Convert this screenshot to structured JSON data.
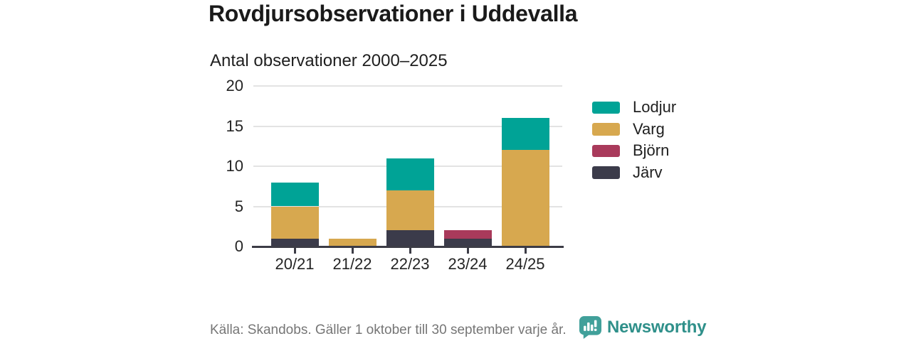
{
  "chart_data": {
    "type": "bar",
    "stacked": true,
    "title": "Rovdjursobservationer i Uddevalla",
    "subtitle": "Antal observationer 2000–2025",
    "categories": [
      "20/21",
      "21/22",
      "22/23",
      "23/24",
      "24/25"
    ],
    "series": [
      {
        "name": "Lodjur",
        "color": "#00A396",
        "values": [
          3,
          0,
          4,
          0,
          4
        ]
      },
      {
        "name": "Varg",
        "color": "#D7A84F",
        "values": [
          4,
          1,
          5,
          0,
          12
        ]
      },
      {
        "name": "Björn",
        "color": "#A93A5B",
        "values": [
          0,
          0,
          0,
          1,
          0
        ]
      },
      {
        "name": "Järv",
        "color": "#3B3B4A",
        "values": [
          1,
          0,
          2,
          1,
          0
        ]
      }
    ],
    "stack_order_bottom_to_top": [
      "Järv",
      "Björn",
      "Varg",
      "Lodjur"
    ],
    "totals": [
      8,
      1,
      11,
      2,
      16
    ],
    "xlabel": "",
    "ylabel": "",
    "ylim": [
      0,
      20
    ],
    "yticks": [
      0,
      5,
      10,
      15,
      20
    ],
    "grid": "horizontal",
    "legend_position": "right"
  },
  "footer": {
    "source": "Källa: Skandobs. Gäller 1 oktober till 30 september varje år.",
    "brand": "Newsworthy",
    "brand_color": "#2F908A",
    "logo_color": "#41A09A"
  }
}
